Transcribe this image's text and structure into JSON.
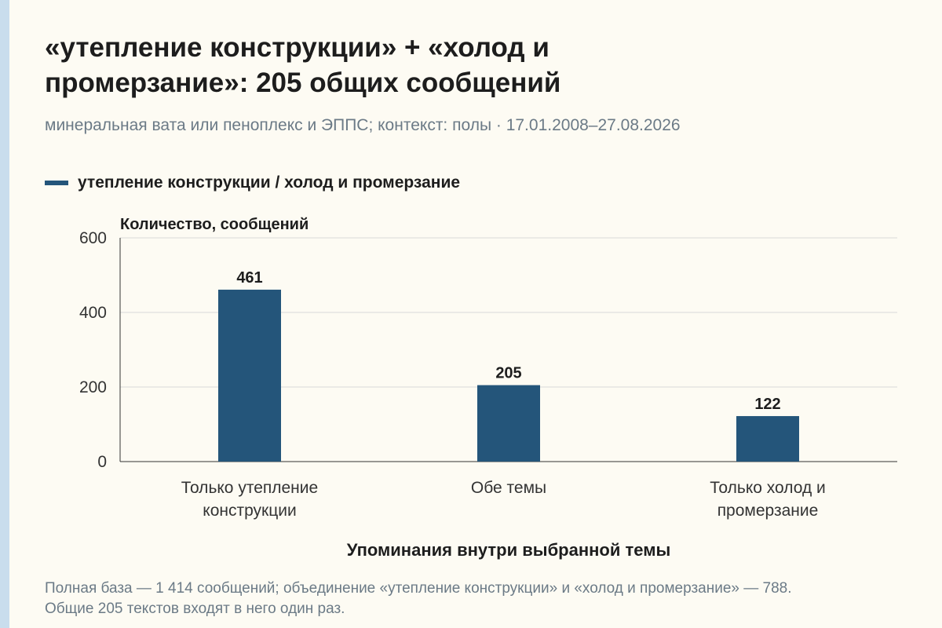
{
  "header": {
    "title": "«утепление конструкции» + «холод и промерзание»: 205 общих сообщений",
    "subtitle": "минеральная вата или пеноплекс и ЭППС; контекст: полы · 17.01.2008–27.08.2026"
  },
  "colors": {
    "bar": "#24557a",
    "background": "#fdfbf3",
    "grid": "#d9d9d9",
    "muted_text": "#6b7a86"
  },
  "chart_data": {
    "type": "bar",
    "categories": [
      [
        "Только утепление",
        "конструкции"
      ],
      [
        "Обе темы"
      ],
      [
        "Только холод и",
        "промерзание"
      ]
    ],
    "series": [
      {
        "name": "утепление конструкции / холод и промерзание",
        "values": [
          461,
          205,
          122
        ]
      }
    ],
    "ylabel": "Количество, сообщений",
    "xlabel": "Упоминания внутри выбранной темы",
    "ylim": [
      0,
      600
    ],
    "yticks": [
      0,
      200,
      400,
      600
    ],
    "grid": true,
    "legend_position": "top-left",
    "data_labels": true
  },
  "footnote": "Полная база — 1 414 сообщений; объединение «утепление конструкции» и «холод и промерзание» — 788. Общие 205 текстов входят в него один раз."
}
